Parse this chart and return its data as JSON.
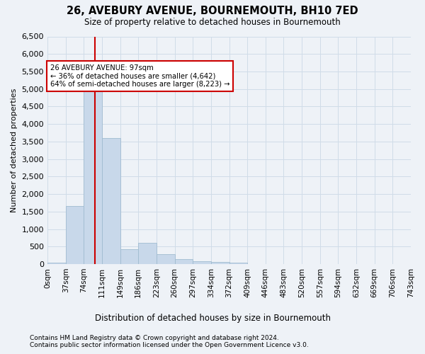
{
  "title": "26, AVEBURY AVENUE, BOURNEMOUTH, BH10 7ED",
  "subtitle": "Size of property relative to detached houses in Bournemouth",
  "xlabel": "Distribution of detached houses by size in Bournemouth",
  "ylabel": "Number of detached properties",
  "footnote1": "Contains HM Land Registry data © Crown copyright and database right 2024.",
  "footnote2": "Contains public sector information licensed under the Open Government Licence v3.0.",
  "bar_values": [
    50,
    1650,
    5050,
    3600,
    430,
    600,
    280,
    140,
    90,
    60,
    40,
    0,
    0,
    0,
    0,
    0,
    0,
    0,
    0
  ],
  "bin_labels": [
    "0sqm",
    "37sqm",
    "74sqm",
    "111sqm",
    "149sqm",
    "186sqm",
    "223sqm",
    "260sqm",
    "297sqm",
    "334sqm",
    "372sqm",
    "409sqm",
    "446sqm",
    "483sqm",
    "520sqm",
    "557sqm",
    "594sqm",
    "632sqm",
    "669sqm",
    "706sqm",
    "743sqm"
  ],
  "ylim": [
    0,
    6500
  ],
  "yticks": [
    0,
    500,
    1000,
    1500,
    2000,
    2500,
    3000,
    3500,
    4000,
    4500,
    5000,
    5500,
    6000,
    6500
  ],
  "property_line_x": 97,
  "bin_width": 37,
  "bar_color": "#c8d8ea",
  "bar_edge_color": "#a0bcd0",
  "line_color": "#cc0000",
  "annotation_line1": "26 AVEBURY AVENUE: 97sqm",
  "annotation_line2": "← 36% of detached houses are smaller (4,642)",
  "annotation_line3": "64% of semi-detached houses are larger (8,223) →",
  "annotation_box_color": "#ffffff",
  "annotation_box_edge": "#cc0000",
  "grid_color": "#d0dce8",
  "bg_color": "#eef2f7"
}
